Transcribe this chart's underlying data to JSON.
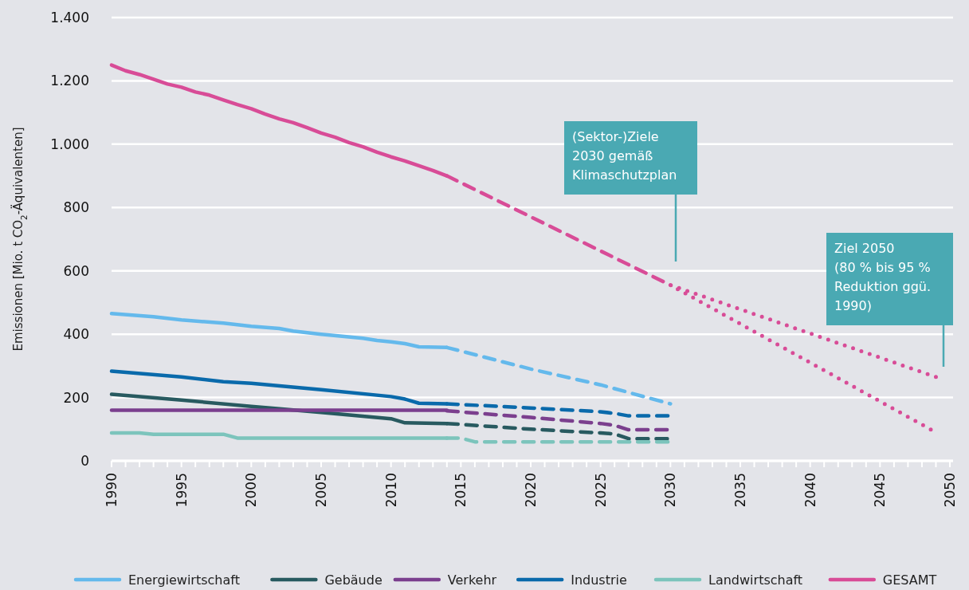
{
  "chart_data": {
    "type": "line",
    "ylabel": "Emissionen [Mio. t CO$_{2}$-Äquivalenten]",
    "xlim": [
      1990,
      2050
    ],
    "ylim": [
      0,
      1400
    ],
    "xticks": [
      1990,
      {
        "value": 1991,
        "label": null
      },
      {
        "value": 1992,
        "label": null
      },
      {
        "value": 1993,
        "label": null
      },
      {
        "value": 1994,
        "label": null
      },
      1995,
      {
        "value": 1996,
        "label": null
      },
      {
        "value": 1997,
        "label": null
      },
      {
        "value": 1998,
        "label": null
      },
      {
        "value": 1999,
        "label": null
      },
      2000,
      {
        "value": 2001,
        "label": null
      },
      {
        "value": 2002,
        "label": null
      },
      {
        "value": 2003,
        "label": null
      },
      {
        "value": 2004,
        "label": null
      },
      2005,
      {
        "value": 2006,
        "label": null
      },
      {
        "value": 2007,
        "label": null
      },
      {
        "value": 2008,
        "label": null
      },
      {
        "value": 2009,
        "label": null
      },
      2010,
      {
        "value": 2011,
        "label": null
      },
      {
        "value": 2012,
        "label": null
      },
      {
        "value": 2013,
        "label": null
      },
      {
        "value": 2014,
        "label": null
      },
      2015,
      {
        "value": 2016,
        "label": null
      },
      {
        "value": 2017,
        "label": null
      },
      {
        "value": 2018,
        "label": null
      },
      {
        "value": 2019,
        "label": null
      },
      2020,
      {
        "value": 2021,
        "label": null
      },
      {
        "value": 2022,
        "label": null
      },
      {
        "value": 2023,
        "label": null
      },
      {
        "value": 2024,
        "label": null
      },
      2025,
      {
        "value": 2026,
        "label": null
      },
      {
        "value": 2027,
        "label": null
      },
      {
        "value": 2028,
        "label": null
      },
      {
        "value": 2029,
        "label": null
      },
      2030,
      {
        "value": 2031,
        "label": null
      },
      {
        "value": 2032,
        "label": null
      },
      {
        "value": 2033,
        "label": null
      },
      {
        "value": 2034,
        "label": null
      },
      2035,
      {
        "value": 2036,
        "label": null
      },
      {
        "value": 2037,
        "label": null
      },
      {
        "value": 2038,
        "label": null
      },
      {
        "value": 2039,
        "label": null
      },
      2040,
      {
        "value": 2041,
        "label": null
      },
      {
        "value": 2042,
        "label": null
      },
      {
        "value": 2043,
        "label": null
      },
      {
        "value": 2044,
        "label": null
      },
      2045,
      {
        "value": 2046,
        "label": null
      },
      {
        "value": 2047,
        "label": null
      },
      {
        "value": 2048,
        "label": null
      },
      {
        "value": 2049,
        "label": null
      },
      2050
    ],
    "yticks": [
      0,
      200,
      400,
      600,
      800,
      {
        "value": 1000,
        "label": "1.000"
      },
      {
        "value": 1200,
        "label": "1.200"
      },
      {
        "value": 1400,
        "label": "1.400"
      }
    ],
    "grid": "y",
    "legend": "bottom",
    "series": [
      {
        "name": "Energiewirtschaft",
        "color": "#64b9ec",
        "line_style": "solid",
        "x": [
          1990,
          1993,
          1995,
          1998,
          2000,
          2002,
          2003,
          2005,
          2008,
          2009,
          2010,
          2011,
          2012,
          2014
        ],
        "values": [
          465,
          455,
          445,
          435,
          425,
          418,
          410,
          400,
          387,
          380,
          376,
          370,
          360,
          358
        ]
      },
      {
        "color": "#64b9ec",
        "line_style": "dashed",
        "x": [
          2014,
          2020,
          2025,
          2030
        ],
        "values": [
          358,
          290,
          240,
          180
        ]
      },
      {
        "name": "Gebäude",
        "color": "#285a60",
        "line_style": "solid",
        "x": [
          1990,
          1995,
          2000,
          2005,
          2010,
          2011,
          2014
        ],
        "values": [
          210,
          192,
          172,
          153,
          133,
          120,
          118
        ]
      },
      {
        "color": "#285a60",
        "line_style": "dashed",
        "x": [
          2014,
          2020,
          2025,
          2026,
          2027,
          2030
        ],
        "values": [
          118,
          100,
          88,
          85,
          70,
          70
        ]
      },
      {
        "name": "Verkehr",
        "color": "#7b3f8e",
        "line_style": "solid",
        "x": [
          1990,
          2014
        ],
        "values": [
          160,
          160
        ]
      },
      {
        "color": "#7b3f8e",
        "line_style": "dashed",
        "x": [
          2014,
          2020,
          2025,
          2026,
          2027,
          2030
        ],
        "values": [
          158,
          137,
          118,
          112,
          98,
          98
        ]
      },
      {
        "name": "Industrie",
        "color": "#0a6aab",
        "line_style": "solid",
        "x": [
          1990,
          1995,
          1998,
          2000,
          2005,
          2010,
          2011,
          2012,
          2014
        ],
        "values": [
          283,
          265,
          250,
          245,
          225,
          203,
          195,
          182,
          180
        ]
      },
      {
        "color": "#0a6aab",
        "line_style": "dashed",
        "x": [
          2014,
          2020,
          2025,
          2026,
          2027,
          2030
        ],
        "values": [
          180,
          167,
          155,
          150,
          142,
          142
        ]
      },
      {
        "name": "Landwirtschaft",
        "color": "#7cc4bc",
        "line_style": "solid",
        "x": [
          1990,
          1992,
          1993,
          1998,
          1999,
          2014
        ],
        "values": [
          88,
          88,
          84,
          84,
          72,
          72
        ]
      },
      {
        "color": "#7cc4bc",
        "line_style": "dashed",
        "x": [
          2014,
          2015,
          2016,
          2030
        ],
        "values": [
          72,
          72,
          60,
          60
        ]
      },
      {
        "name": "GESAMT",
        "color": "#d84c97",
        "line_style": "solid",
        "x": [
          1990,
          1991,
          1992,
          1993,
          1994,
          1995,
          1996,
          1997,
          1998,
          1999,
          2000,
          2001,
          2002,
          2003,
          2004,
          2005,
          2006,
          2007,
          2008,
          2009,
          2010,
          2011,
          2012,
          2013,
          2014
        ],
        "values": [
          1250,
          1232,
          1220,
          1205,
          1190,
          1180,
          1165,
          1155,
          1140,
          1125,
          1112,
          1095,
          1080,
          1068,
          1052,
          1035,
          1022,
          1005,
          992,
          975,
          960,
          947,
          932,
          917,
          900
        ]
      },
      {
        "color": "#d84c97",
        "line_style": "dashed",
        "x": [
          2014,
          2030
        ],
        "values": [
          900,
          555
        ]
      },
      {
        "color": "#d84c97",
        "line_style": "dotted",
        "x": [
          2049,
          2030,
          2049
        ],
        "values": [
          265,
          555,
          90
        ]
      }
    ],
    "annotations": [
      "(Sektor-)Ziele\n2030 gemäß\nKlimaschutzplan",
      "Ziel 2050\n(80 % bis 95 %\nReduktion ggü.\n1990)"
    ]
  }
}
